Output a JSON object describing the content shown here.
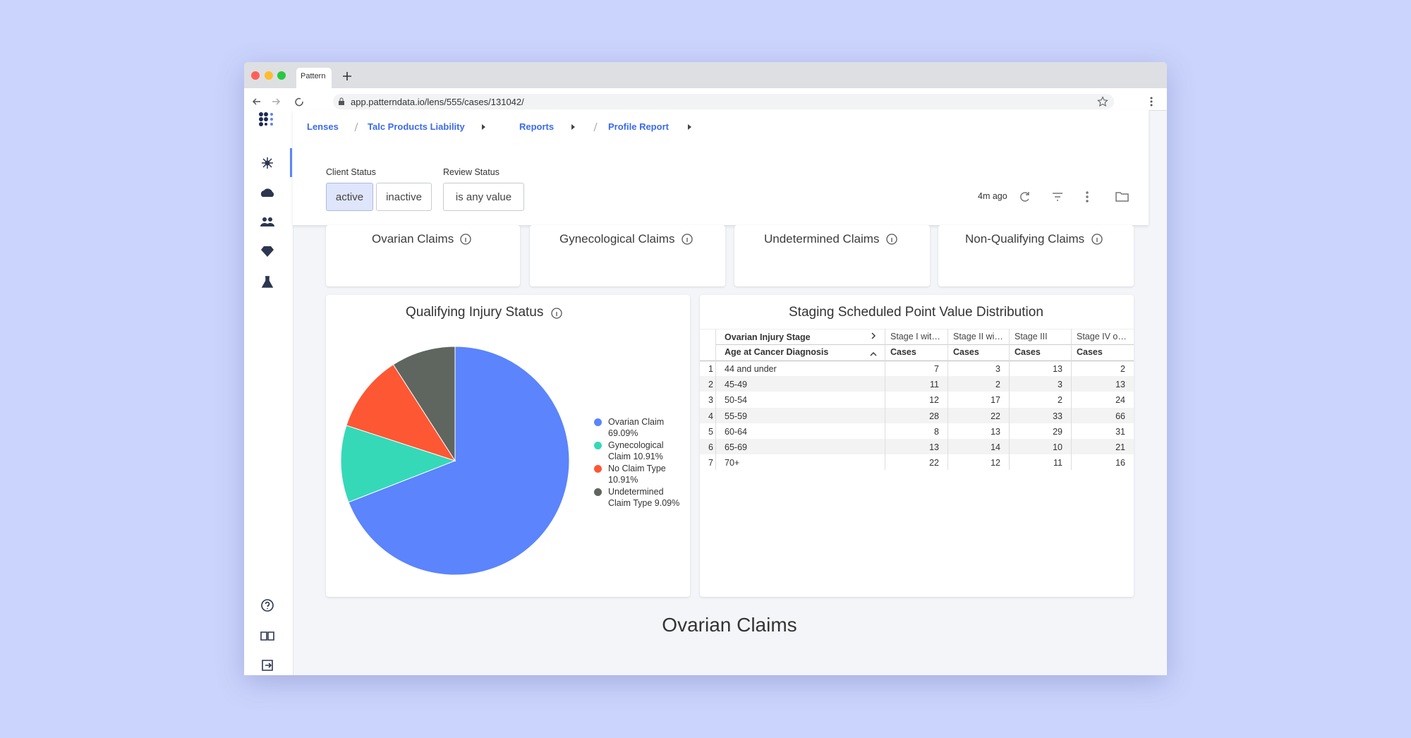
{
  "browser": {
    "tab": "Pattern",
    "url": "app.patterndata.io/lens/555/cases/131042/"
  },
  "breadcrumbs": [
    "Lenses",
    "Talc Products Liability",
    "Reports",
    "Profile Report"
  ],
  "filters": [
    {
      "label": "Client Status",
      "options": [
        "active",
        "inactive"
      ]
    },
    {
      "label": "Review Status",
      "options": [
        "is any value"
      ]
    }
  ],
  "updated": "4m ago",
  "cards": [
    "Ovarian Claims",
    "Gynecological Claims",
    "Undetermined Claims",
    "Non-Qualifying Claims"
  ],
  "chart_data": {
    "type": "pie",
    "title": "Qualifying Injury Status",
    "categories": [
      "Ovarian Claim",
      "Gynecological Claim",
      "No Claim Type",
      "Undetermined Claim Type"
    ],
    "values": [
      69.09,
      10.91,
      10.91,
      9.09
    ],
    "value_labels": [
      "69.09%",
      "10.91%",
      "10.91%",
      "9.09%"
    ],
    "colors": [
      "#5b84fd",
      "#35d9b8",
      "#fe5733",
      "#5f6660"
    ]
  },
  "table": {
    "title": "Staging Scheduled Point Value Distribution",
    "pivot_header": "Ovarian Injury Stage",
    "row_header": "Age at Cancer Diagnosis",
    "columns": [
      "Stage I wit…",
      "Stage II wi…",
      "Stage III",
      "Stage IV o…"
    ],
    "measures": [
      "Cases",
      "Cases",
      "Cases",
      "Cases"
    ],
    "rows": [
      {
        "index": "1",
        "label": "44 and under",
        "values": [
          7,
          3,
          13,
          2
        ]
      },
      {
        "index": "2",
        "label": "45-49",
        "values": [
          11,
          2,
          3,
          13
        ]
      },
      {
        "index": "3",
        "label": "50-54",
        "values": [
          12,
          17,
          2,
          24
        ]
      },
      {
        "index": "4",
        "label": "55-59",
        "values": [
          28,
          22,
          33,
          66
        ]
      },
      {
        "index": "5",
        "label": "60-64",
        "values": [
          8,
          13,
          29,
          31
        ]
      },
      {
        "index": "6",
        "label": "65-69",
        "values": [
          13,
          14,
          10,
          21
        ]
      },
      {
        "index": "7",
        "label": "70+",
        "values": [
          22,
          12,
          11,
          16
        ]
      }
    ]
  },
  "section_title": "Ovarian Claims"
}
